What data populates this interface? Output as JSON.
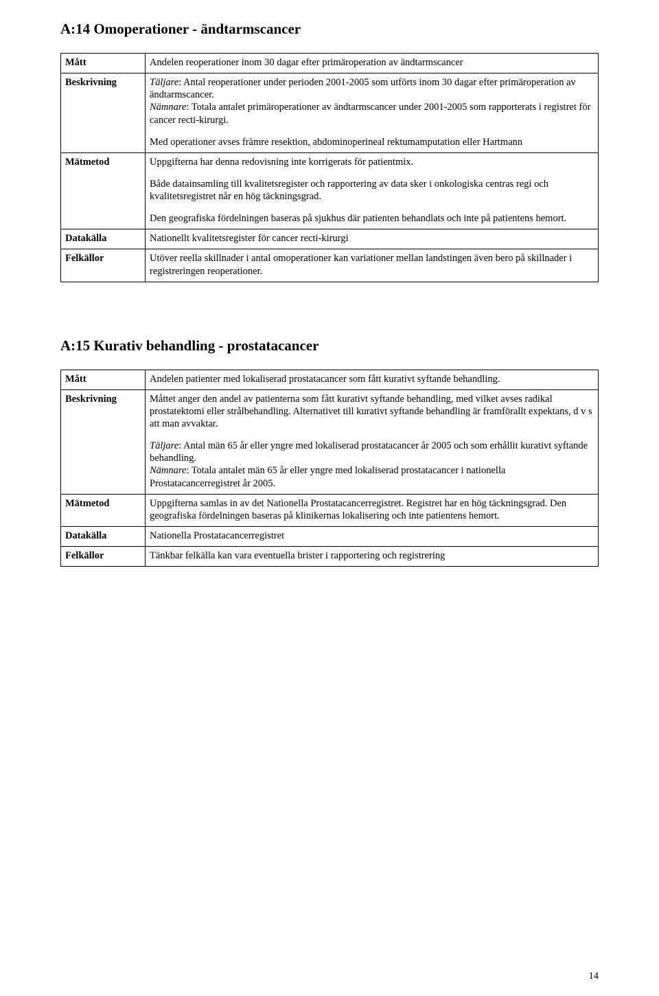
{
  "page_number": "14",
  "sections": [
    {
      "title": "A:14 Omoperationer - ändtarmscancer",
      "rows": {
        "matt_label": "Mått",
        "matt_value": "Andelen reoperationer inom 30 dagar efter primäroperation av ändtarmscancer",
        "beskrivning_label": "Beskrivning",
        "beskrivning_p1_lead": "Täljare",
        "beskrivning_p1_rest": ": Antal reoperationer under perioden 2001-2005 som utförts inom 30 dagar efter primäroperation av ändtarmscancer.",
        "beskrivning_p2_lead": "Nämnare",
        "beskrivning_p2_rest": ": Totala antalet primäroperationer av ändtarmscancer under 2001-2005 som rapporterats i registret för cancer recti-kirurgi.",
        "beskrivning_p3": "Med operationer avses främre resektion, abdominoperineal rektumamputation eller Hartmann",
        "matmetod_label": "Mätmetod",
        "matmetod_p1": "Uppgifterna har denna redovisning inte korrigerats för patientmix.",
        "matmetod_p2": "Både datainsamling till kvalitetsregister och rapportering av data sker i onkologiska centras regi och kvalitetsregistret når en hög täckningsgrad.",
        "matmetod_p3": "Den geografiska fördelningen baseras på sjukhus där patienten behandlats och inte på patientens hemort.",
        "datakalla_label": "Datakälla",
        "datakalla_value": "Nationellt kvalitetsregister för cancer recti-kirurgi",
        "felkallor_label": "Felkällor",
        "felkallor_value": "Utöver reella skillnader i antal omoperationer kan variationer mellan landstingen även bero på skillnader i registreringen reoperationer."
      }
    },
    {
      "title": "A:15 Kurativ behandling - prostatacancer",
      "rows": {
        "matt_label": "Mått",
        "matt_value": "Andelen patienter med lokaliserad prostatacancer som fått kurativt syftande behandling.",
        "beskrivning_label": "Beskrivning",
        "beskrivning_p1": "Måttet anger den andel av patienterna som fått kurativt syftande behandling, med vilket avses radikal prostatektomi eller strålbehandling. Alternativet till kurativt syftande behandling är framförallt expektans, d v s att man avvaktar.",
        "beskrivning_p2_lead": "Täljare",
        "beskrivning_p2_rest": ": Antal män 65 år eller yngre med lokaliserad prostatacancer år 2005 och som erhållit kurativt syftande behandling.",
        "beskrivning_p3_lead": "Nämnare",
        "beskrivning_p3_rest": ": Totala antalet män 65 år eller yngre med lokaliserad prostatacancer i nationella Prostatacancerregistret år 2005.",
        "matmetod_label": "Mätmetod",
        "matmetod_value": "Uppgifterna samlas in av det Nationella Prostatacancerregistret. Registret har en hög täckningsgrad. Den geografiska fördelningen baseras på klinikernas lokalisering och inte patientens hemort.",
        "datakalla_label": "Datakälla",
        "datakalla_value": "Nationella Prostatacancerregistret",
        "felkallor_label": "Felkällor",
        "felkallor_value": "Tänkbar felkälla kan vara eventuella brister i rapportering och registrering"
      }
    }
  ]
}
